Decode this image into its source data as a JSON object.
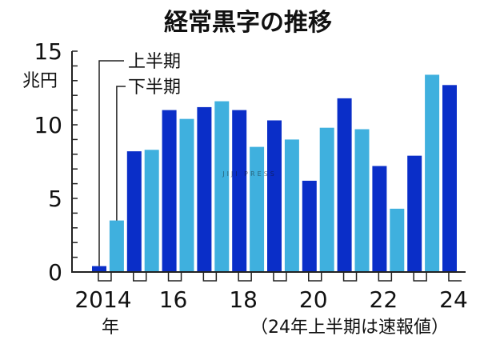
{
  "chart_data": {
    "type": "bar",
    "title": "経常黒字の推移",
    "ylabel": "兆円",
    "xlabel": "年",
    "ylim": [
      0,
      15
    ],
    "yticks": [
      "0",
      "5",
      "10",
      "15"
    ],
    "xticks": [
      {
        "year": 2014,
        "label": "2014"
      },
      {
        "year": 2016,
        "label": "16"
      },
      {
        "year": 2018,
        "label": "18"
      },
      {
        "year": 2020,
        "label": "20"
      },
      {
        "year": 2022,
        "label": "22"
      },
      {
        "year": 2024,
        "label": "24"
      }
    ],
    "legend": [
      {
        "name": "上半期",
        "color": "#0a2ec8"
      },
      {
        "name": "下半期",
        "color": "#3fb0de"
      }
    ],
    "note": "（24年上半期は速報値）",
    "categories": [
      "2014H1",
      "2014H2",
      "2015H1",
      "2015H2",
      "2016H1",
      "2016H2",
      "2017H1",
      "2017H2",
      "2018H1",
      "2018H2",
      "2019H1",
      "2019H2",
      "2020H1",
      "2020H2",
      "2021H1",
      "2021H2",
      "2022H1",
      "2022H2",
      "2023H1",
      "2023H2",
      "2024H1"
    ],
    "values": [
      0.4,
      3.5,
      8.2,
      8.3,
      11.0,
      10.4,
      11.2,
      11.6,
      11.0,
      8.5,
      10.3,
      9.0,
      6.2,
      9.8,
      11.8,
      9.7,
      7.2,
      4.3,
      7.9,
      13.4,
      12.7
    ]
  },
  "watermark": "JIJI PRESS"
}
